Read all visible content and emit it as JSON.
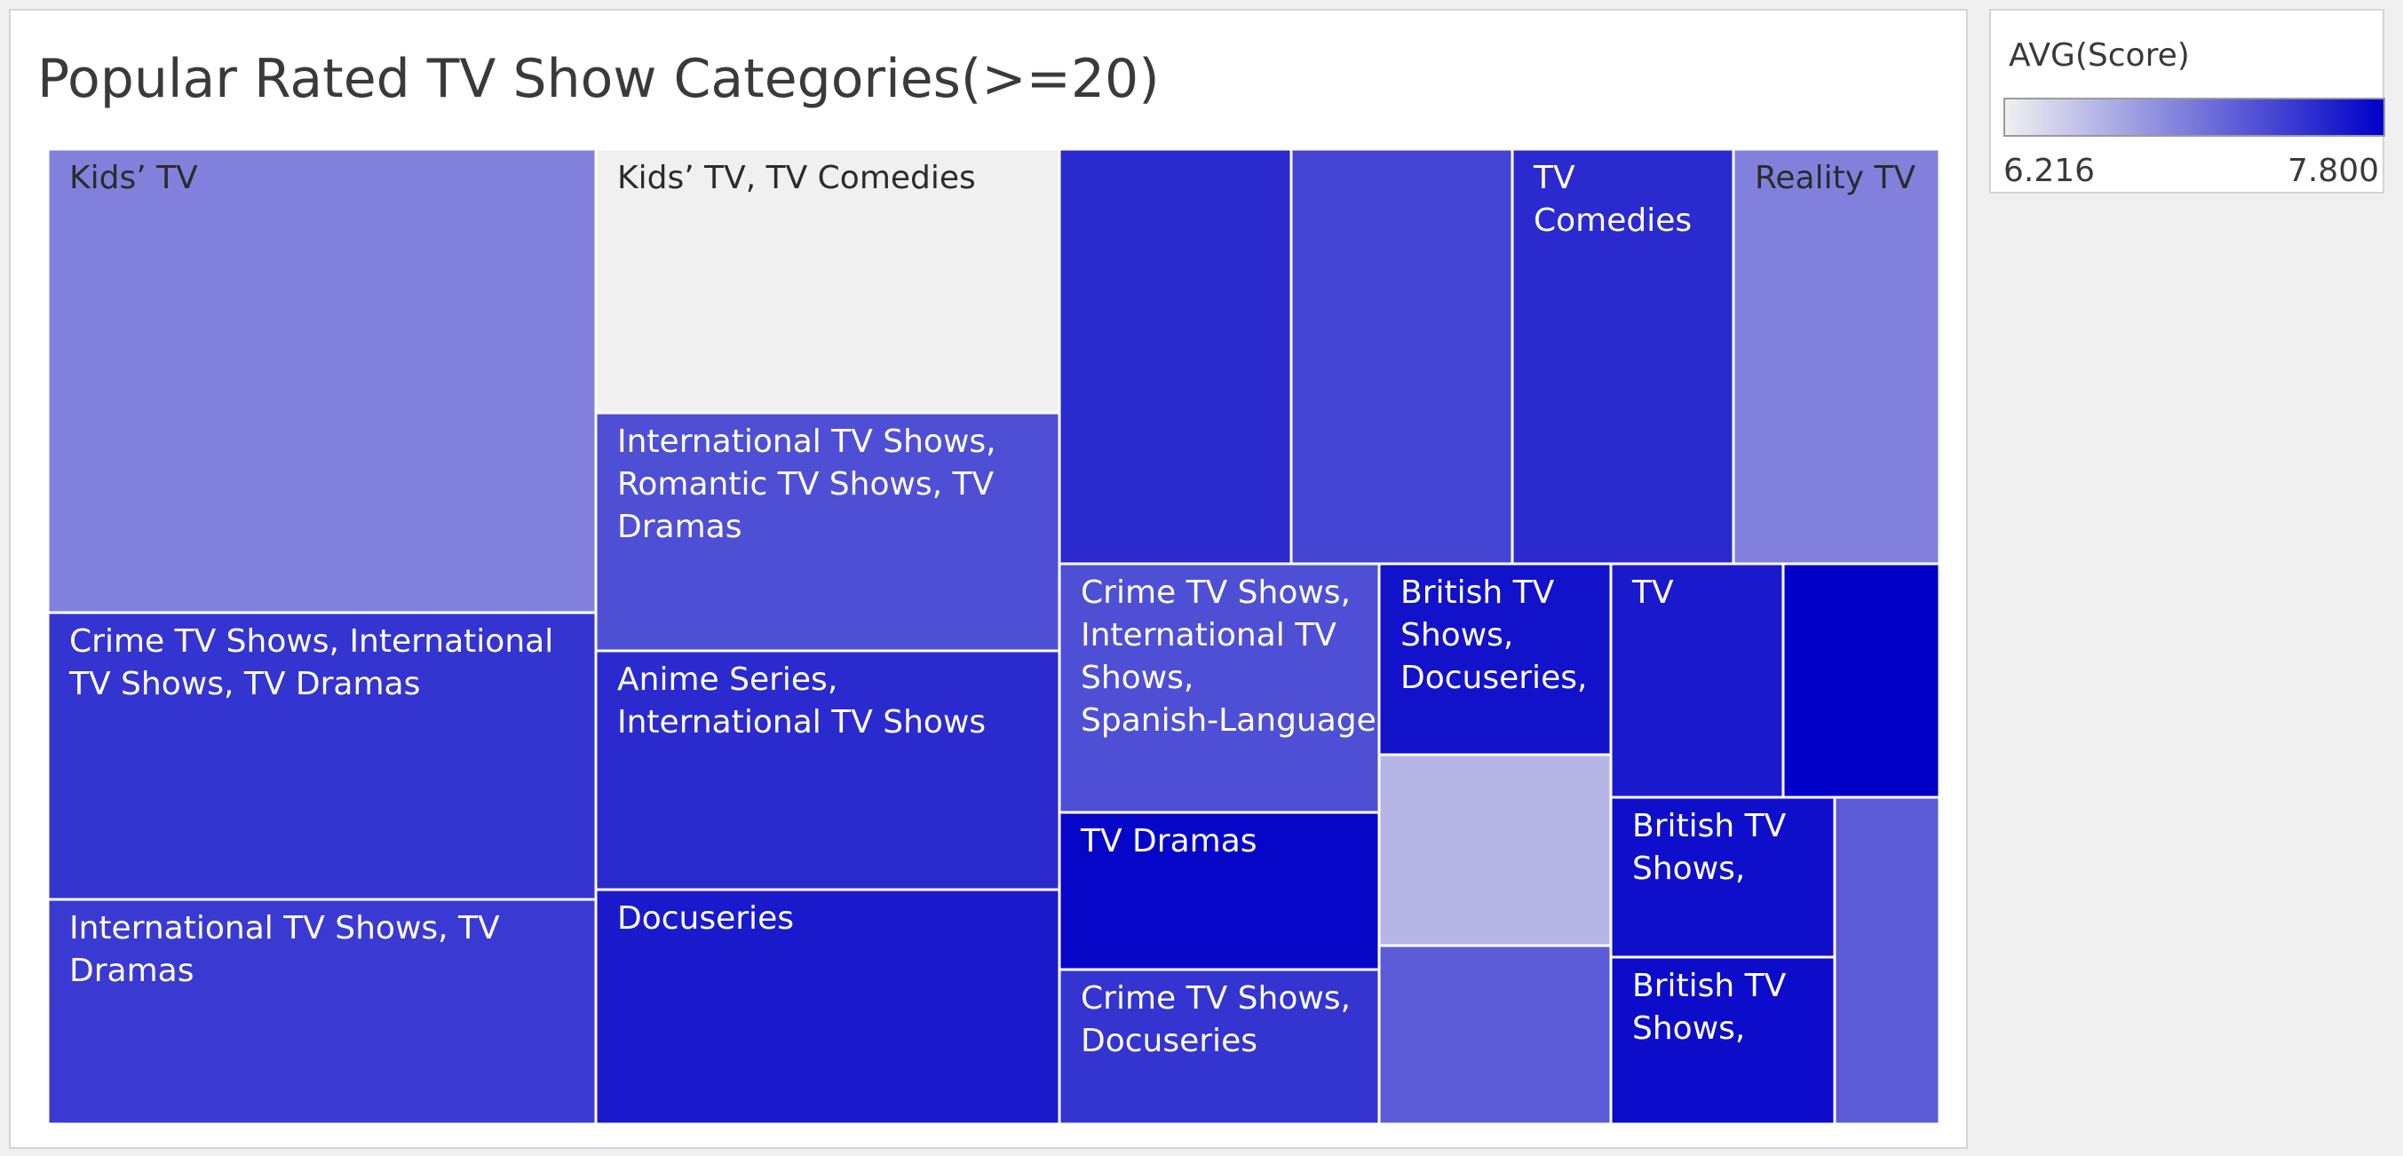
{
  "chart_data": {
    "type": "treemap",
    "title": "Popular Rated TV Show Categories(>=20)",
    "color_measure": "AVG(Score)",
    "color_range": [
      6.216,
      7.8
    ],
    "color_min_label": "6.216",
    "color_max_label": "7.800",
    "color_low": "#f0f0f0",
    "color_high": "#0000c8",
    "cells": [
      {
        "label": "Kids’ TV",
        "score": 6.95
      },
      {
        "label": "Crime TV Shows, International TV Shows, TV Dramas",
        "score": 7.46
      },
      {
        "label": "International TV Shows, TV Dramas",
        "score": 7.42
      },
      {
        "label": "Kids’ TV, TV Comedies",
        "score": 6.216
      },
      {
        "label": "International TV Shows, Romantic TV Shows, TV Dramas",
        "score": 7.28
      },
      {
        "label": "Anime Series, International TV Shows",
        "score": 7.52
      },
      {
        "label": "Docuseries",
        "score": 7.63
      },
      {
        "label": "",
        "score": 7.52
      },
      {
        "label": "",
        "score": 7.35
      },
      {
        "label": "TV Comedies",
        "score": 7.52
      },
      {
        "label": "Reality TV",
        "score": 6.95
      },
      {
        "label": "Crime TV Shows, International TV Shows, Spanish-Language",
        "score": 7.28
      },
      {
        "label": "TV Dramas",
        "score": 7.76
      },
      {
        "label": "Crime TV Shows, Docuseries",
        "score": 7.46
      },
      {
        "label": "British TV Shows, Docuseries,",
        "score": 7.68
      },
      {
        "label": "",
        "score": 6.6
      },
      {
        "label": "",
        "score": 7.2
      },
      {
        "label": "TV",
        "score": 7.63
      },
      {
        "label": "",
        "score": 7.8
      },
      {
        "label": "British TV Shows,",
        "score": 7.7
      },
      {
        "label": "British TV Shows,",
        "score": 7.72
      },
      {
        "label": "",
        "score": 7.2
      }
    ]
  }
}
